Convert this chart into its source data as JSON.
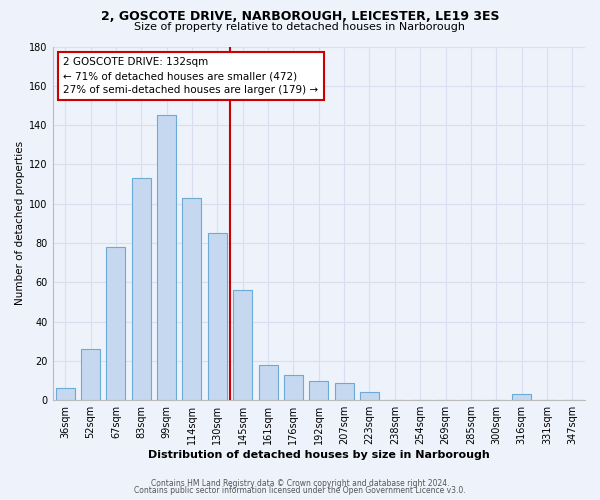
{
  "title1": "2, GOSCOTE DRIVE, NARBOROUGH, LEICESTER, LE19 3ES",
  "title2": "Size of property relative to detached houses in Narborough",
  "xlabel": "Distribution of detached houses by size in Narborough",
  "ylabel": "Number of detached properties",
  "bin_labels": [
    "36sqm",
    "52sqm",
    "67sqm",
    "83sqm",
    "99sqm",
    "114sqm",
    "130sqm",
    "145sqm",
    "161sqm",
    "176sqm",
    "192sqm",
    "207sqm",
    "223sqm",
    "238sqm",
    "254sqm",
    "269sqm",
    "285sqm",
    "300sqm",
    "316sqm",
    "331sqm",
    "347sqm"
  ],
  "bin_values": [
    6,
    26,
    78,
    113,
    145,
    103,
    85,
    56,
    18,
    13,
    10,
    9,
    4,
    0,
    0,
    0,
    0,
    0,
    3,
    0,
    0
  ],
  "bar_color": "#c5d8f0",
  "bar_edge_color": "#6aaad4",
  "vline_color": "#cc0000",
  "annotation_title": "2 GOSCOTE DRIVE: 132sqm",
  "annotation_line1": "← 71% of detached houses are smaller (472)",
  "annotation_line2": "27% of semi-detached houses are larger (179) →",
  "annotation_box_color": "#ffffff",
  "annotation_box_edge": "#cc0000",
  "ylim": [
    0,
    180
  ],
  "yticks": [
    0,
    20,
    40,
    60,
    80,
    100,
    120,
    140,
    160,
    180
  ],
  "footer1": "Contains HM Land Registry data © Crown copyright and database right 2024.",
  "footer2": "Contains public sector information licensed under the Open Government Licence v3.0.",
  "background_color": "#eef2fa",
  "grid_color": "#d8dff0",
  "title1_fontsize": 9,
  "title2_fontsize": 8,
  "xlabel_fontsize": 8,
  "ylabel_fontsize": 7.5,
  "tick_fontsize": 7,
  "annotation_fontsize": 7.5,
  "footer_fontsize": 5.5
}
